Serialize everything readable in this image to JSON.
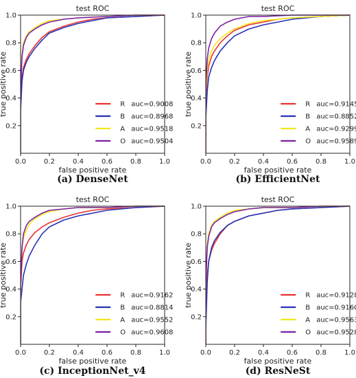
{
  "chart_data": [
    {
      "type": "line",
      "title": "test ROC",
      "xlabel": "false positive rate",
      "ylabel": "true positive rate",
      "xlim": [
        0,
        1
      ],
      "ylim": [
        0,
        1
      ],
      "xticks": [
        "0.0",
        "0.2",
        "0.4",
        "0.6",
        "0.8",
        "1.0"
      ],
      "yticks": [
        "0.2",
        "0.4",
        "0.6",
        "0.8",
        "1.0"
      ],
      "grid": false,
      "legend_position": "lower-right",
      "caption": "(a) DenseNet",
      "series": [
        {
          "name": "R",
          "auc_label": "auc=0.9008",
          "color": "#e8312f",
          "x": [
            0,
            0,
            0.01,
            0.02,
            0.04,
            0.06,
            0.1,
            0.15,
            0.2,
            0.3,
            0.4,
            0.5,
            0.6,
            0.8,
            1.0
          ],
          "y": [
            0,
            0.35,
            0.55,
            0.62,
            0.68,
            0.72,
            0.78,
            0.84,
            0.88,
            0.92,
            0.95,
            0.97,
            0.98,
            0.99,
            1.0
          ]
        },
        {
          "name": "B",
          "auc_label": "auc=0.8968",
          "color": "#2332b8",
          "x": [
            0,
            0,
            0.01,
            0.02,
            0.04,
            0.06,
            0.1,
            0.15,
            0.2,
            0.3,
            0.4,
            0.5,
            0.6,
            0.8,
            1.0
          ],
          "y": [
            0,
            0.3,
            0.52,
            0.6,
            0.66,
            0.7,
            0.76,
            0.82,
            0.87,
            0.91,
            0.94,
            0.96,
            0.98,
            0.99,
            1.0
          ]
        },
        {
          "name": "A",
          "auc_label": "auc=0.9518",
          "color": "#f2e81a",
          "x": [
            0,
            0,
            0.01,
            0.02,
            0.04,
            0.06,
            0.1,
            0.15,
            0.2,
            0.3,
            0.4,
            0.6,
            0.8,
            1.0
          ],
          "y": [
            0,
            0.5,
            0.72,
            0.8,
            0.85,
            0.88,
            0.91,
            0.94,
            0.96,
            0.97,
            0.98,
            0.99,
            1.0,
            1.0
          ]
        },
        {
          "name": "O",
          "auc_label": "auc=0.9504",
          "color": "#7b1fa2",
          "x": [
            0,
            0,
            0.01,
            0.02,
            0.04,
            0.06,
            0.1,
            0.15,
            0.2,
            0.3,
            0.4,
            0.6,
            0.8,
            1.0
          ],
          "y": [
            0,
            0.45,
            0.7,
            0.78,
            0.84,
            0.87,
            0.9,
            0.93,
            0.95,
            0.97,
            0.98,
            0.99,
            1.0,
            1.0
          ]
        }
      ]
    },
    {
      "type": "line",
      "title": "test ROC",
      "xlabel": "false positive rate",
      "ylabel": "true positive rate",
      "xlim": [
        0,
        1
      ],
      "ylim": [
        0,
        1
      ],
      "xticks": [
        "0.0",
        "0.2",
        "0.4",
        "0.6",
        "0.8",
        "1.0"
      ],
      "yticks": [
        "0.2",
        "0.4",
        "0.6",
        "0.8",
        "1.0"
      ],
      "grid": false,
      "legend_position": "lower-right",
      "caption": "(b) EfficientNet",
      "series": [
        {
          "name": "R",
          "auc_label": "auc=0.9145",
          "color": "#e8312f",
          "x": [
            0,
            0,
            0.01,
            0.02,
            0.04,
            0.06,
            0.1,
            0.15,
            0.2,
            0.3,
            0.4,
            0.5,
            0.6,
            0.8,
            1.0
          ],
          "y": [
            0,
            0.4,
            0.55,
            0.63,
            0.7,
            0.74,
            0.8,
            0.85,
            0.89,
            0.93,
            0.95,
            0.97,
            0.98,
            0.99,
            1.0
          ]
        },
        {
          "name": "B",
          "auc_label": "auc=0.8852",
          "color": "#2332b8",
          "x": [
            0,
            0,
            0.01,
            0.02,
            0.04,
            0.06,
            0.1,
            0.15,
            0.2,
            0.3,
            0.4,
            0.5,
            0.6,
            0.8,
            1.0
          ],
          "y": [
            0,
            0.25,
            0.45,
            0.55,
            0.62,
            0.67,
            0.74,
            0.8,
            0.85,
            0.9,
            0.93,
            0.95,
            0.97,
            0.99,
            1.0
          ]
        },
        {
          "name": "A",
          "auc_label": "auc=0.9299",
          "color": "#f2e81a",
          "x": [
            0,
            0,
            0.01,
            0.02,
            0.04,
            0.06,
            0.1,
            0.15,
            0.2,
            0.3,
            0.4,
            0.6,
            0.8,
            1.0
          ],
          "y": [
            0,
            0.45,
            0.6,
            0.68,
            0.74,
            0.78,
            0.83,
            0.87,
            0.9,
            0.94,
            0.96,
            0.98,
            0.99,
            1.0
          ]
        },
        {
          "name": "O",
          "auc_label": "auc=0.9589",
          "color": "#7b1fa2",
          "x": [
            0,
            0,
            0.01,
            0.02,
            0.04,
            0.06,
            0.1,
            0.15,
            0.2,
            0.3,
            0.4,
            0.6,
            0.8,
            1.0
          ],
          "y": [
            0,
            0.5,
            0.68,
            0.76,
            0.83,
            0.87,
            0.92,
            0.95,
            0.97,
            0.99,
            0.99,
            1.0,
            1.0,
            1.0
          ]
        }
      ]
    },
    {
      "type": "line",
      "title": "test ROC",
      "xlabel": "false positive rate",
      "ylabel": "true positive rate",
      "xlim": [
        0,
        1
      ],
      "ylim": [
        0,
        1
      ],
      "xticks": [
        "0.0",
        "0.2",
        "0.4",
        "0.6",
        "0.8",
        "1.0"
      ],
      "yticks": [
        "0.2",
        "0.4",
        "0.6",
        "0.8",
        "1.0"
      ],
      "grid": false,
      "legend_position": "lower-right",
      "caption": "(c) InceptionNet_v4",
      "series": [
        {
          "name": "R",
          "auc_label": "auc=0.9162",
          "color": "#e8312f",
          "x": [
            0,
            0,
            0.01,
            0.02,
            0.04,
            0.06,
            0.1,
            0.15,
            0.2,
            0.3,
            0.4,
            0.5,
            0.6,
            0.8,
            1.0
          ],
          "y": [
            0,
            0.4,
            0.6,
            0.66,
            0.72,
            0.76,
            0.81,
            0.85,
            0.88,
            0.92,
            0.95,
            0.97,
            0.98,
            0.99,
            1.0
          ]
        },
        {
          "name": "B",
          "auc_label": "auc=0.8814",
          "color": "#2332b8",
          "x": [
            0,
            0,
            0.01,
            0.02,
            0.04,
            0.06,
            0.1,
            0.15,
            0.2,
            0.3,
            0.4,
            0.5,
            0.6,
            0.8,
            1.0
          ],
          "y": [
            0,
            0.3,
            0.4,
            0.5,
            0.58,
            0.64,
            0.72,
            0.8,
            0.85,
            0.9,
            0.93,
            0.95,
            0.97,
            0.99,
            1.0
          ]
        },
        {
          "name": "A",
          "auc_label": "auc=0.9552",
          "color": "#f2e81a",
          "x": [
            0,
            0,
            0.01,
            0.02,
            0.04,
            0.06,
            0.1,
            0.15,
            0.2,
            0.3,
            0.4,
            0.6,
            0.8,
            1.0
          ],
          "y": [
            0,
            0.5,
            0.7,
            0.77,
            0.83,
            0.87,
            0.91,
            0.94,
            0.96,
            0.98,
            0.99,
            0.99,
            1.0,
            1.0
          ]
        },
        {
          "name": "O",
          "auc_label": "auc=0.9608",
          "color": "#7b1fa2",
          "x": [
            0,
            0,
            0.01,
            0.02,
            0.04,
            0.06,
            0.1,
            0.15,
            0.2,
            0.3,
            0.4,
            0.6,
            0.8,
            1.0
          ],
          "y": [
            0,
            0.45,
            0.7,
            0.8,
            0.86,
            0.89,
            0.92,
            0.95,
            0.97,
            0.98,
            0.99,
            0.99,
            1.0,
            1.0
          ]
        }
      ]
    },
    {
      "type": "line",
      "title": "test ROC",
      "xlabel": "false positive rate",
      "ylabel": "true positive rate",
      "xlim": [
        0,
        1
      ],
      "ylim": [
        0,
        1
      ],
      "xticks": [
        "0.0",
        "0.2",
        "0.4",
        "0.6",
        "0.8",
        "1.0"
      ],
      "yticks": [
        "0.2",
        "0.4",
        "0.6",
        "0.8",
        "1.0"
      ],
      "grid": false,
      "legend_position": "lower-right",
      "caption": "(d) ResNeSt",
      "series": [
        {
          "name": "R",
          "auc_label": "auc=0.9128",
          "color": "#e8312f",
          "x": [
            0,
            0,
            0.01,
            0.02,
            0.04,
            0.06,
            0.1,
            0.15,
            0.2,
            0.3,
            0.4,
            0.5,
            0.6,
            0.8,
            1.0
          ],
          "y": [
            0,
            0.3,
            0.5,
            0.6,
            0.68,
            0.73,
            0.8,
            0.86,
            0.89,
            0.93,
            0.95,
            0.97,
            0.98,
            0.99,
            1.0
          ]
        },
        {
          "name": "B",
          "auc_label": "auc=0.9160",
          "color": "#2332b8",
          "x": [
            0,
            0,
            0.01,
            0.02,
            0.04,
            0.06,
            0.1,
            0.15,
            0.2,
            0.3,
            0.4,
            0.5,
            0.6,
            0.8,
            1.0
          ],
          "y": [
            0,
            0.1,
            0.45,
            0.6,
            0.7,
            0.75,
            0.81,
            0.86,
            0.89,
            0.93,
            0.95,
            0.97,
            0.98,
            0.99,
            1.0
          ]
        },
        {
          "name": "A",
          "auc_label": "auc=0.9563",
          "color": "#f2e81a",
          "x": [
            0,
            0,
            0.01,
            0.02,
            0.04,
            0.06,
            0.1,
            0.15,
            0.2,
            0.3,
            0.4,
            0.6,
            0.8,
            1.0
          ],
          "y": [
            0,
            0.5,
            0.72,
            0.8,
            0.86,
            0.89,
            0.92,
            0.95,
            0.97,
            0.98,
            0.99,
            0.99,
            1.0,
            1.0
          ]
        },
        {
          "name": "O",
          "auc_label": "auc=0.9528",
          "color": "#7b1fa2",
          "x": [
            0,
            0,
            0.01,
            0.02,
            0.04,
            0.06,
            0.1,
            0.15,
            0.2,
            0.3,
            0.4,
            0.6,
            0.8,
            1.0
          ],
          "y": [
            0,
            0.45,
            0.7,
            0.78,
            0.85,
            0.88,
            0.91,
            0.94,
            0.96,
            0.98,
            0.99,
            0.99,
            1.0,
            1.0
          ]
        }
      ]
    }
  ]
}
